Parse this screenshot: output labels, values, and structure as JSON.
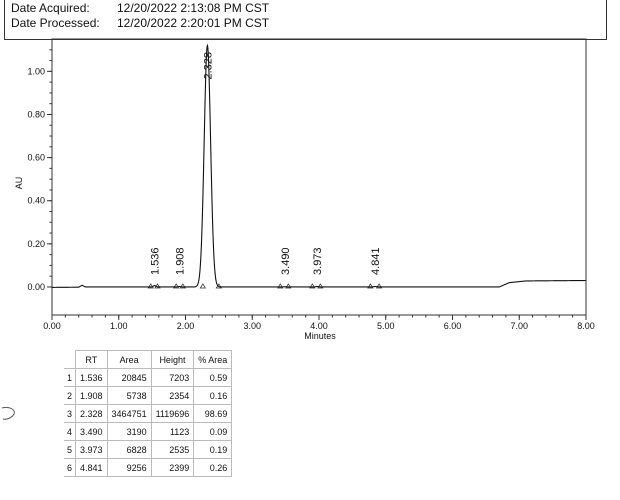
{
  "header": {
    "acquired_label": "Date Acquired:",
    "acquired_value": "12/20/2022 2:13:08 PM CST",
    "processed_label": "Date Processed:",
    "processed_value": "12/20/2022 2:20:01 PM CST"
  },
  "chart_data": {
    "type": "line",
    "xlabel": "Minutes",
    "ylabel": "AU",
    "xlim": [
      0,
      8
    ],
    "ylim": [
      -0.13,
      1.15
    ],
    "x_ticks": [
      "0.00",
      "1.00",
      "2.00",
      "3.00",
      "4.00",
      "5.00",
      "6.00",
      "7.00",
      "8.00"
    ],
    "y_ticks": [
      "0.00",
      "0.20",
      "0.40",
      "0.60",
      "0.80",
      "1.00"
    ],
    "grid": false,
    "peaks": [
      {
        "rt": 1.536,
        "label": "1.536",
        "start": 1.48,
        "end": 1.58,
        "height": 0.006
      },
      {
        "rt": 1.908,
        "label": "1.908",
        "start": 1.86,
        "end": 1.96,
        "height": 0.002
      },
      {
        "rt": 2.328,
        "label": "2.328",
        "start": 2.26,
        "end": 2.5,
        "height": 1.12
      },
      {
        "rt": 3.49,
        "label": "3.490",
        "start": 3.42,
        "end": 3.54,
        "height": 0.001
      },
      {
        "rt": 3.973,
        "label": "3.973",
        "start": 3.9,
        "end": 4.02,
        "height": 0.002
      },
      {
        "rt": 4.841,
        "label": "4.841",
        "start": 4.77,
        "end": 4.9,
        "height": 0.002
      }
    ],
    "baseline_drift": [
      [
        0,
        -0.002
      ],
      [
        0.4,
        -0.001
      ],
      [
        0.45,
        0.008
      ],
      [
        0.5,
        0.0
      ],
      [
        6.7,
        0.0
      ],
      [
        6.85,
        0.02
      ],
      [
        7.1,
        0.028
      ],
      [
        8.0,
        0.03
      ]
    ]
  },
  "table": {
    "headers": [
      "RT",
      "Area",
      "Height",
      "% Area"
    ],
    "rows": [
      {
        "idx": "1",
        "rt": "1.536",
        "area": "20845",
        "height": "7203",
        "pct": "0.59"
      },
      {
        "idx": "2",
        "rt": "1.908",
        "area": "5738",
        "height": "2354",
        "pct": "0.16"
      },
      {
        "idx": "3",
        "rt": "2.328",
        "area": "3464751",
        "height": "1119696",
        "pct": "98.69"
      },
      {
        "idx": "4",
        "rt": "3.490",
        "area": "3190",
        "height": "1123",
        "pct": "0.09"
      },
      {
        "idx": "5",
        "rt": "3.973",
        "area": "6828",
        "height": "2535",
        "pct": "0.19"
      },
      {
        "idx": "6",
        "rt": "4.841",
        "area": "9256",
        "height": "2399",
        "pct": "0.26"
      }
    ]
  }
}
